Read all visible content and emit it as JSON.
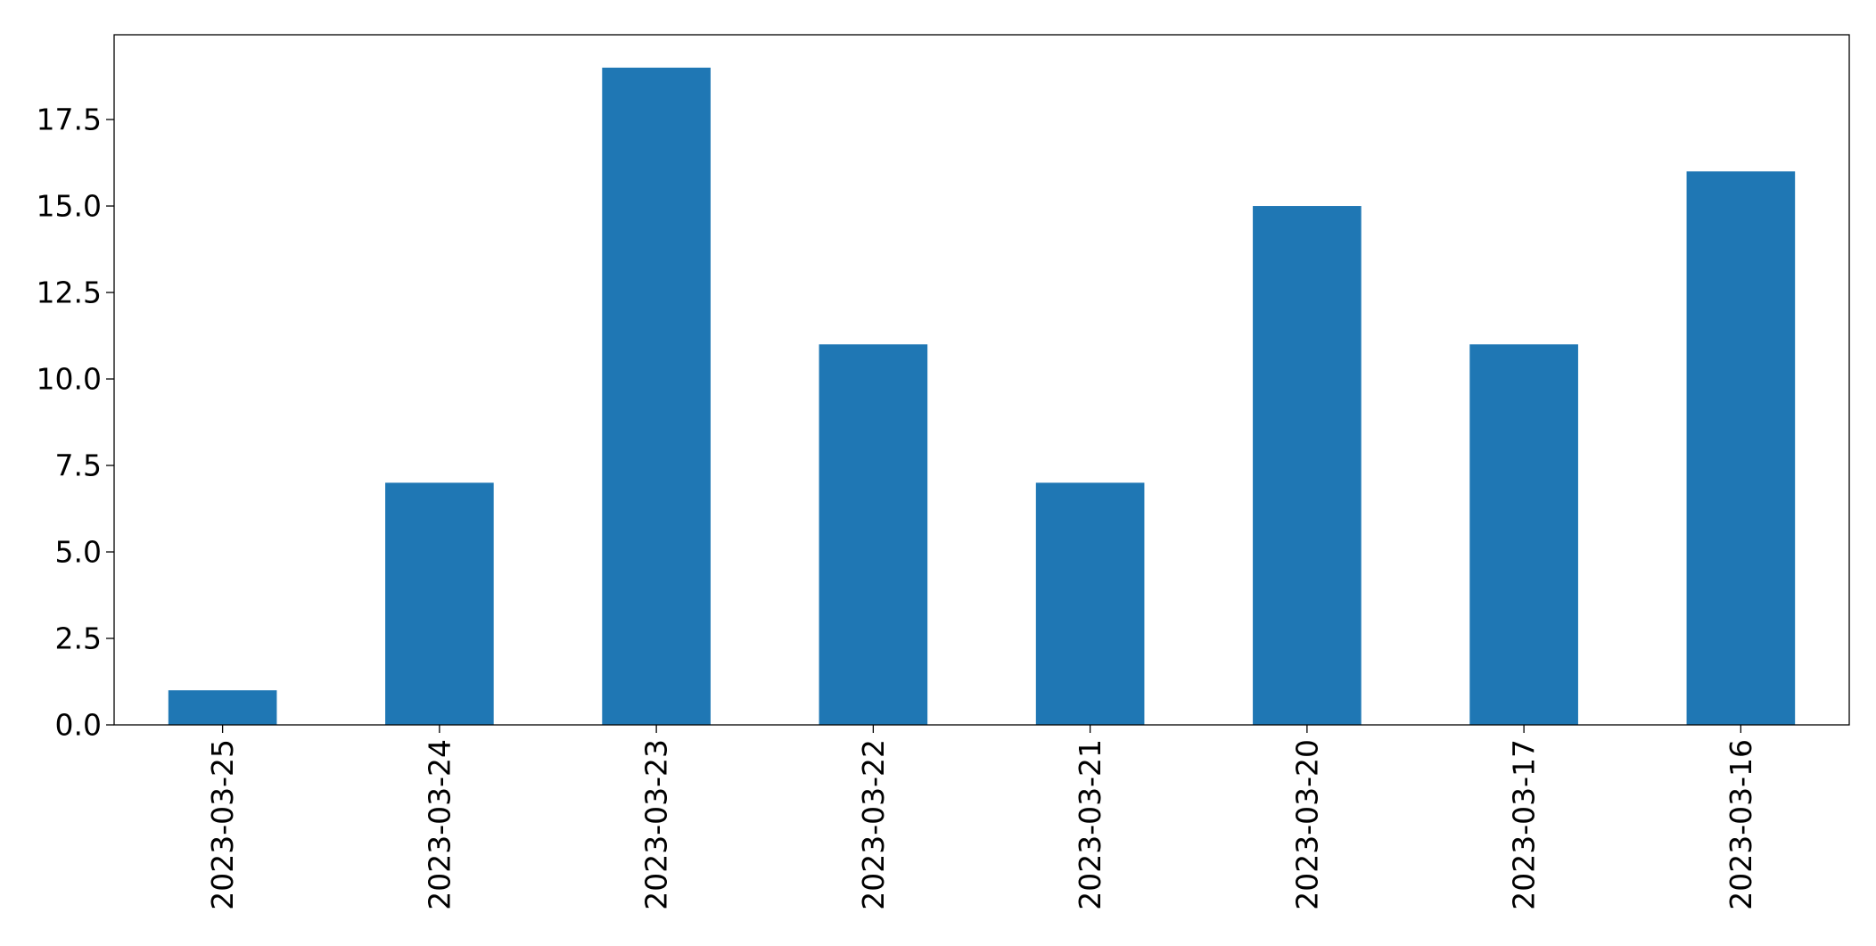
{
  "chart_data": {
    "type": "bar",
    "title": "",
    "xlabel": "",
    "ylabel": "",
    "categories": [
      "2023-03-25",
      "2023-03-24",
      "2023-03-23",
      "2023-03-22",
      "2023-03-21",
      "2023-03-20",
      "2023-03-17",
      "2023-03-16"
    ],
    "values": [
      1,
      7,
      19,
      11,
      7,
      15,
      11,
      16
    ],
    "ylim": [
      0,
      19.95
    ],
    "yticks": [
      0,
      2.5,
      5,
      7.5,
      10,
      12.5,
      15,
      17.5
    ],
    "ytick_labels": [
      "0.0",
      "2.5",
      "5.0",
      "7.5",
      "10.0",
      "12.5",
      "15.0",
      "17.5"
    ],
    "bar_color": "#1f77b4",
    "grid": false,
    "legend": "none",
    "xtick_rotation": "vertical"
  }
}
